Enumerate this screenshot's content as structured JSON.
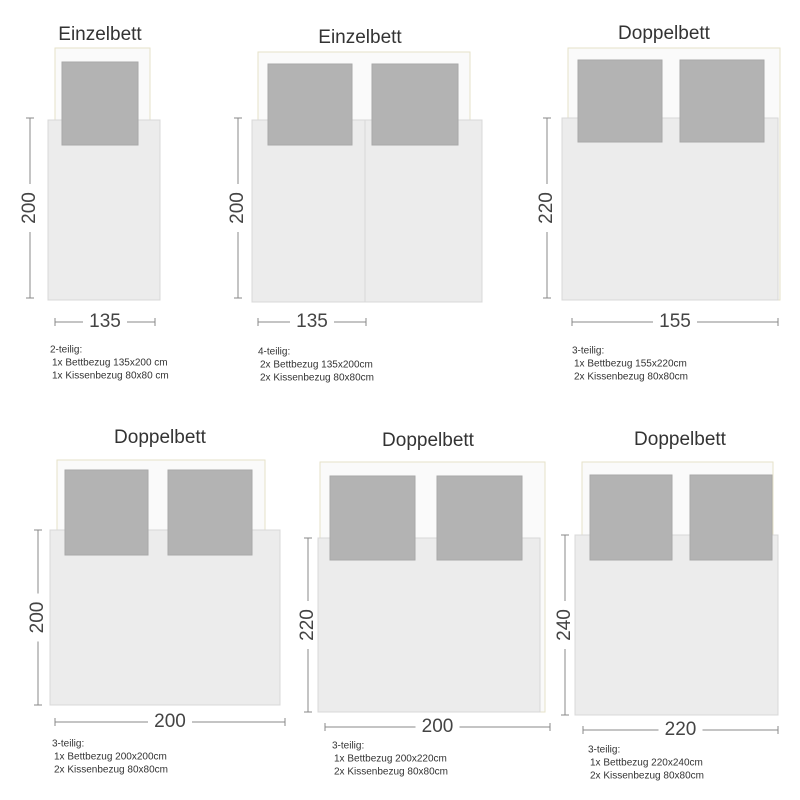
{
  "beds": [
    {
      "title": "Einzelbett",
      "height": 200,
      "width": 135,
      "details": [
        "2-teilig:",
        "1x Bettbezug 135x200 cm",
        "1x Kissenbezug 80x80 cm"
      ]
    },
    {
      "title": "Einzelbett",
      "height": 200,
      "width": 135,
      "details": [
        "4-teilig:",
        "2x Bettbezug 135x200cm",
        "2x Kissenbezug 80x80cm"
      ]
    },
    {
      "title": "Doppelbett",
      "height": 220,
      "width": 155,
      "details": [
        "3-teilig:",
        "1x Bettbezug 155x220cm",
        "2x Kissenbezug 80x80cm"
      ]
    },
    {
      "title": "Doppelbett",
      "height": 200,
      "width": 200,
      "details": [
        "3-teilig:",
        "1x Bettbezug 200x200cm",
        "2x Kissenbezug 80x80cm"
      ]
    },
    {
      "title": "Doppelbett",
      "height": 220,
      "width": 200,
      "details": [
        "3-teilig:",
        "1x Bettbezug 200x220cm",
        "2x Kissenbezug 80x80cm"
      ]
    },
    {
      "title": "Doppelbett",
      "height": 240,
      "width": 220,
      "details": [
        "3-teilig:",
        "1x Bettbezug 220x240cm",
        "2x Kissenbezug 80x80cm"
      ]
    }
  ]
}
